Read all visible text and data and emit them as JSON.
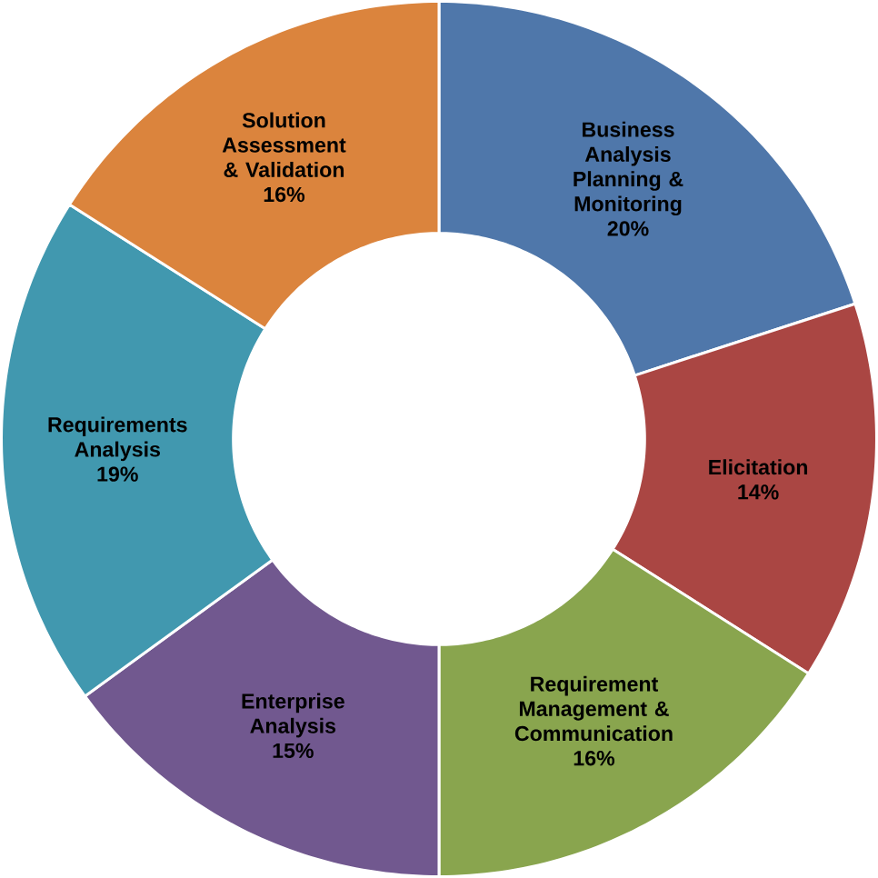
{
  "chart_data": {
    "type": "donut",
    "categories": [
      "Business Analysis Planning & Monitoring",
      "Elicitation",
      "Requirement Management & Communication",
      "Enterprise Analysis",
      "Requirements Analysis",
      "Solution Assessment & Validation"
    ],
    "values": [
      20,
      14,
      16,
      15,
      19,
      16
    ],
    "value_labels": [
      "20%",
      "14%",
      "16%",
      "15%",
      "19%",
      "16%"
    ],
    "colors": [
      "#4f77aa",
      "#aa4643",
      "#89a54e",
      "#71588f",
      "#4198af",
      "#db843d"
    ]
  }
}
